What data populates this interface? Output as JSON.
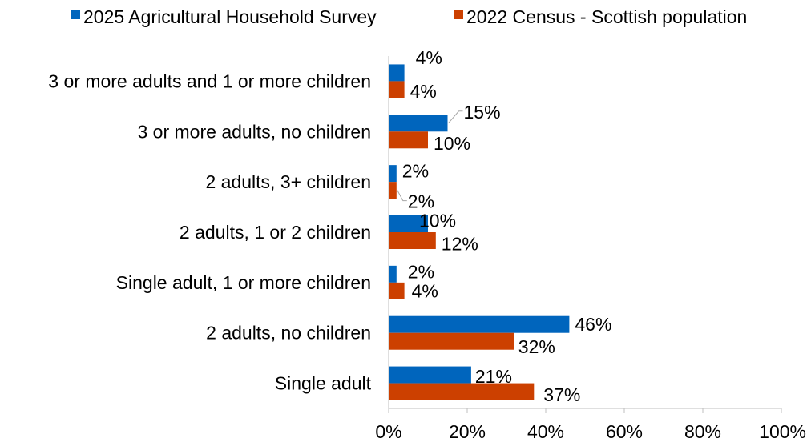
{
  "chart_data": {
    "type": "bar",
    "orientation": "horizontal",
    "title": "",
    "xlabel": "",
    "ylabel": "",
    "categories": [
      "3 or more adults and 1 or more children",
      "3 or more adults, no children",
      "2 adults, 3+ children",
      "2 adults, 1 or 2 children",
      "Single adult, 1 or more children",
      "2 adults, no children",
      "Single adult"
    ],
    "series": [
      {
        "name": "2025 Agricultural Household Survey",
        "color": "#0065BD",
        "values": [
          4,
          15,
          2,
          10,
          2,
          46,
          21
        ],
        "labels": [
          "4%",
          "15%",
          "2%",
          "10%",
          "2%",
          "46%",
          "21%"
        ]
      },
      {
        "name": "2022 Census - Scottish population",
        "color": "#CC4000",
        "values": [
          4,
          10,
          2,
          12,
          4,
          32,
          37
        ],
        "labels": [
          "4%",
          "10%",
          "2%",
          "12%",
          "4%",
          "32%",
          "37%"
        ]
      }
    ],
    "xlim": [
      0,
      100
    ],
    "ticks": [
      0,
      20,
      40,
      60,
      80,
      100
    ],
    "tick_labels": [
      "0%",
      "20%",
      "40%",
      "60%",
      "80%",
      "100%"
    ],
    "grid": false,
    "legend_position": "top"
  }
}
